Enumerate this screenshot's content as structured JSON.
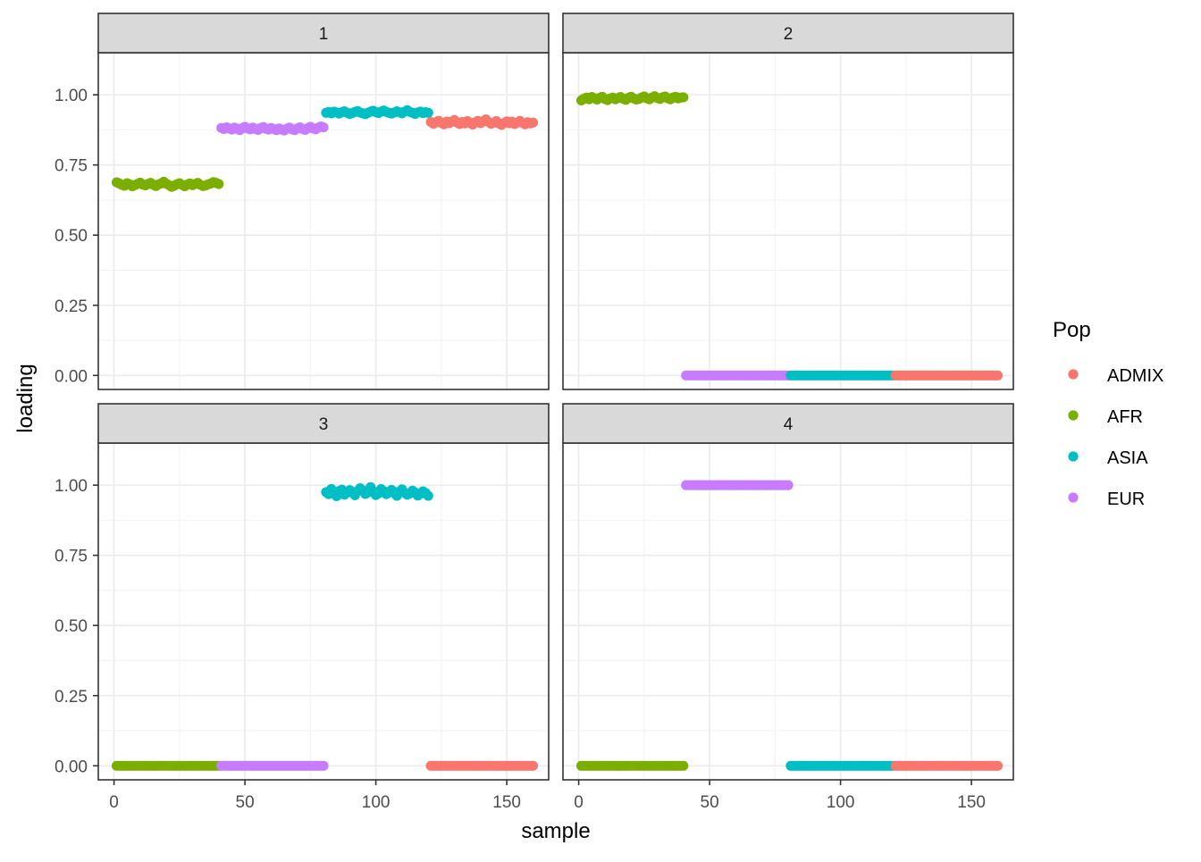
{
  "chart_data": {
    "type": "scatter",
    "facet_by": "panel",
    "xlabel": "sample",
    "ylabel": "loading",
    "xlim": [
      -6,
      166
    ],
    "ylim": [
      -0.05,
      1.15
    ],
    "x_ticks": [
      0,
      50,
      100,
      150
    ],
    "x_tick_labels": [
      "0",
      "50",
      "100",
      "150"
    ],
    "y_ticks": [
      0,
      0.25,
      0.5,
      0.75,
      1
    ],
    "y_tick_labels": [
      "0.00",
      "0.25",
      "0.50",
      "0.75",
      "1.00"
    ],
    "grid": true,
    "legend": {
      "title": "Pop",
      "position": "right",
      "entries": [
        {
          "name": "ADMIX",
          "color": "#F8766D"
        },
        {
          "name": "AFR",
          "color": "#7CAE00"
        },
        {
          "name": "ASIA",
          "color": "#00BFC4"
        },
        {
          "name": "EUR",
          "color": "#C77CFF"
        }
      ]
    },
    "panels": [
      {
        "label": "1",
        "series": [
          {
            "pop": "AFR",
            "x_range": [
              1,
              40
            ],
            "loadings": [
              0.688,
              0.684,
              0.679,
              0.676,
              0.685,
              0.681,
              0.674,
              0.678,
              0.683,
              0.687,
              0.68,
              0.677,
              0.682,
              0.686,
              0.679,
              0.675,
              0.681,
              0.684,
              0.69,
              0.683,
              0.678,
              0.672,
              0.676,
              0.681,
              0.685,
              0.679,
              0.674,
              0.68,
              0.684,
              0.678,
              0.682,
              0.686,
              0.679,
              0.675,
              0.677,
              0.681,
              0.684,
              0.689,
              0.686,
              0.682
            ]
          },
          {
            "pop": "EUR",
            "x_range": [
              41,
              80
            ],
            "loadings": [
              0.882,
              0.878,
              0.884,
              0.88,
              0.876,
              0.883,
              0.879,
              0.874,
              0.881,
              0.886,
              0.88,
              0.877,
              0.883,
              0.878,
              0.875,
              0.881,
              0.885,
              0.879,
              0.876,
              0.882,
              0.878,
              0.874,
              0.88,
              0.876,
              0.873,
              0.879,
              0.883,
              0.877,
              0.874,
              0.88,
              0.884,
              0.878,
              0.875,
              0.881,
              0.886,
              0.88,
              0.877,
              0.883,
              0.887,
              0.884
            ]
          },
          {
            "pop": "ASIA",
            "x_range": [
              81,
              120
            ],
            "loadings": [
              0.936,
              0.939,
              0.934,
              0.94,
              0.937,
              0.933,
              0.938,
              0.941,
              0.936,
              0.932,
              0.935,
              0.939,
              0.942,
              0.937,
              0.934,
              0.931,
              0.936,
              0.94,
              0.943,
              0.938,
              0.935,
              0.94,
              0.944,
              0.939,
              0.936,
              0.933,
              0.937,
              0.941,
              0.938,
              0.934,
              0.94,
              0.945,
              0.939,
              0.936,
              0.932,
              0.937,
              0.94,
              0.935,
              0.938,
              0.936
            ]
          },
          {
            "pop": "ADMIX",
            "x_range": [
              121,
              160
            ],
            "loadings": [
              0.903,
              0.897,
              0.902,
              0.907,
              0.9,
              0.895,
              0.904,
              0.899,
              0.905,
              0.91,
              0.901,
              0.896,
              0.903,
              0.898,
              0.906,
              0.9,
              0.894,
              0.902,
              0.907,
              0.899,
              0.905,
              0.912,
              0.903,
              0.897,
              0.901,
              0.906,
              0.898,
              0.893,
              0.9,
              0.905,
              0.899,
              0.904,
              0.896,
              0.901,
              0.907,
              0.9,
              0.895,
              0.902,
              0.898,
              0.901
            ]
          }
        ]
      },
      {
        "label": "2",
        "series": [
          {
            "pop": "AFR",
            "x_range": [
              1,
              40
            ],
            "loadings": [
              0.98,
              0.986,
              0.99,
              0.984,
              0.992,
              0.988,
              0.983,
              0.989,
              0.993,
              0.985,
              0.981,
              0.987,
              0.99,
              0.984,
              0.988,
              0.992,
              0.986,
              0.982,
              0.989,
              0.993,
              0.987,
              0.983,
              0.985,
              0.99,
              0.994,
              0.988,
              0.984,
              0.99,
              0.995,
              0.989,
              0.985,
              0.991,
              0.994,
              0.988,
              0.984,
              0.99,
              0.993,
              0.987,
              0.99,
              0.991
            ]
          },
          {
            "pop": "EUR",
            "x_range": [
              41,
              80
            ],
            "loadings": [
              0.0
            ]
          },
          {
            "pop": "ASIA",
            "x_range": [
              81,
              120
            ],
            "loadings": [
              0.0
            ]
          },
          {
            "pop": "ADMIX",
            "x_range": [
              121,
              160
            ],
            "loadings": [
              0.0
            ]
          }
        ]
      },
      {
        "label": "3",
        "series": [
          {
            "pop": "AFR",
            "x_range": [
              1,
              40
            ],
            "loadings": [
              0.0
            ]
          },
          {
            "pop": "EUR",
            "x_range": [
              41,
              80
            ],
            "loadings": [
              0.0
            ]
          },
          {
            "pop": "ASIA",
            "x_range": [
              81,
              120
            ],
            "loadings": [
              0.975,
              0.968,
              0.986,
              0.972,
              0.961,
              0.979,
              0.984,
              0.966,
              0.973,
              0.982,
              0.976,
              0.964,
              0.978,
              0.989,
              0.981,
              0.969,
              0.974,
              0.993,
              0.977,
              0.965,
              0.971,
              0.986,
              0.979,
              0.968,
              0.974,
              0.983,
              0.972,
              0.962,
              0.977,
              0.985,
              0.973,
              0.966,
              0.971,
              0.98,
              0.974,
              0.963,
              0.969,
              0.978,
              0.972,
              0.962
            ]
          },
          {
            "pop": "ADMIX",
            "x_range": [
              121,
              160
            ],
            "loadings": [
              0.0
            ]
          }
        ]
      },
      {
        "label": "4",
        "series": [
          {
            "pop": "AFR",
            "x_range": [
              1,
              40
            ],
            "loadings": [
              0.0
            ]
          },
          {
            "pop": "EUR",
            "x_range": [
              41,
              80
            ],
            "loadings": [
              1.0
            ]
          },
          {
            "pop": "ASIA",
            "x_range": [
              81,
              120
            ],
            "loadings": [
              0.0
            ]
          },
          {
            "pop": "ADMIX",
            "x_range": [
              121,
              160
            ],
            "loadings": [
              0.0
            ]
          }
        ]
      }
    ]
  }
}
